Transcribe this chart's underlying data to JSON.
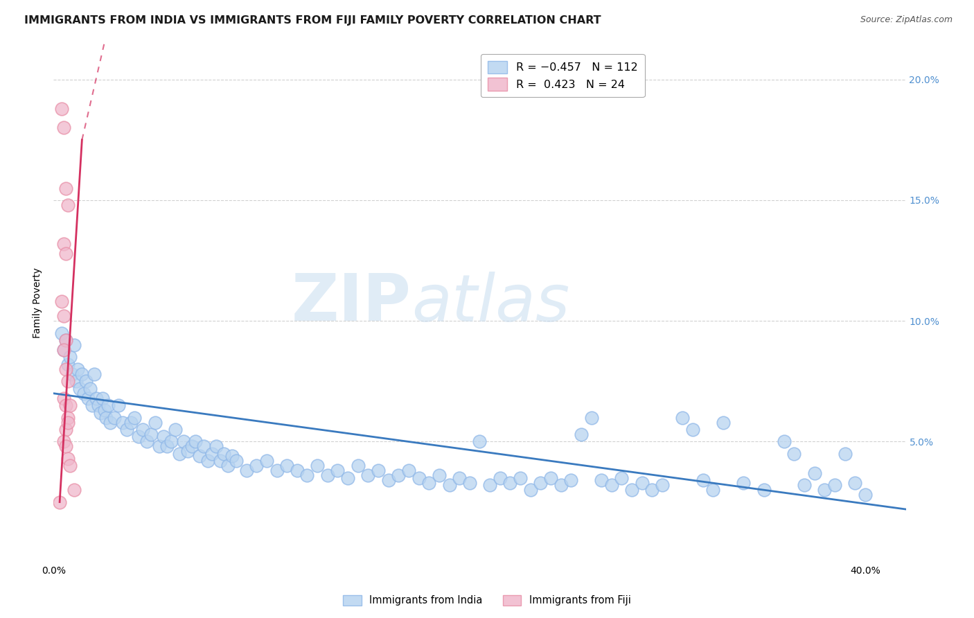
{
  "title": "IMMIGRANTS FROM INDIA VS IMMIGRANTS FROM FIJI FAMILY POVERTY CORRELATION CHART",
  "source": "Source: ZipAtlas.com",
  "ylabel": "Family Poverty",
  "right_yticks": [
    "20.0%",
    "15.0%",
    "10.0%",
    "5.0%"
  ],
  "right_ytick_vals": [
    0.2,
    0.15,
    0.1,
    0.05
  ],
  "xlim": [
    0.0,
    0.42
  ],
  "ylim": [
    0.0,
    0.215
  ],
  "india_color_face": "#b8d4f0",
  "india_color_edge": "#90b8e8",
  "fiji_color_face": "#f0b8cc",
  "fiji_color_edge": "#e890a8",
  "india_trend_color": "#3a7abf",
  "fiji_trend_color": "#d43060",
  "watermark_zip": "ZIP",
  "watermark_atlas": "atlas",
  "background_color": "#ffffff",
  "grid_color": "#cccccc",
  "title_fontsize": 11.5,
  "label_fontsize": 10,
  "tick_fontsize": 10,
  "right_axis_color": "#5090d0",
  "india_trend_x0": 0.0,
  "india_trend_y0": 0.07,
  "india_trend_x1": 0.42,
  "india_trend_y1": 0.022,
  "fiji_trend_solid_x0": 0.003,
  "fiji_trend_solid_y0": 0.025,
  "fiji_trend_solid_x1": 0.014,
  "fiji_trend_solid_y1": 0.175,
  "fiji_trend_dash_x0": 0.014,
  "fiji_trend_dash_y0": 0.175,
  "fiji_trend_dash_x1": 0.025,
  "fiji_trend_dash_y1": 0.215,
  "india_scatter": [
    [
      0.004,
      0.095
    ],
    [
      0.005,
      0.088
    ],
    [
      0.006,
      0.092
    ],
    [
      0.007,
      0.082
    ],
    [
      0.008,
      0.085
    ],
    [
      0.009,
      0.078
    ],
    [
      0.01,
      0.09
    ],
    [
      0.011,
      0.075
    ],
    [
      0.012,
      0.08
    ],
    [
      0.013,
      0.072
    ],
    [
      0.014,
      0.078
    ],
    [
      0.015,
      0.07
    ],
    [
      0.016,
      0.075
    ],
    [
      0.017,
      0.068
    ],
    [
      0.018,
      0.072
    ],
    [
      0.019,
      0.065
    ],
    [
      0.02,
      0.078
    ],
    [
      0.021,
      0.068
    ],
    [
      0.022,
      0.065
    ],
    [
      0.023,
      0.062
    ],
    [
      0.024,
      0.068
    ],
    [
      0.025,
      0.063
    ],
    [
      0.026,
      0.06
    ],
    [
      0.027,
      0.065
    ],
    [
      0.028,
      0.058
    ],
    [
      0.03,
      0.06
    ],
    [
      0.032,
      0.065
    ],
    [
      0.034,
      0.058
    ],
    [
      0.036,
      0.055
    ],
    [
      0.038,
      0.058
    ],
    [
      0.04,
      0.06
    ],
    [
      0.042,
      0.052
    ],
    [
      0.044,
      0.055
    ],
    [
      0.046,
      0.05
    ],
    [
      0.048,
      0.053
    ],
    [
      0.05,
      0.058
    ],
    [
      0.052,
      0.048
    ],
    [
      0.054,
      0.052
    ],
    [
      0.056,
      0.048
    ],
    [
      0.058,
      0.05
    ],
    [
      0.06,
      0.055
    ],
    [
      0.062,
      0.045
    ],
    [
      0.064,
      0.05
    ],
    [
      0.066,
      0.046
    ],
    [
      0.068,
      0.048
    ],
    [
      0.07,
      0.05
    ],
    [
      0.072,
      0.044
    ],
    [
      0.074,
      0.048
    ],
    [
      0.076,
      0.042
    ],
    [
      0.078,
      0.045
    ],
    [
      0.08,
      0.048
    ],
    [
      0.082,
      0.042
    ],
    [
      0.084,
      0.045
    ],
    [
      0.086,
      0.04
    ],
    [
      0.088,
      0.044
    ],
    [
      0.09,
      0.042
    ],
    [
      0.095,
      0.038
    ],
    [
      0.1,
      0.04
    ],
    [
      0.105,
      0.042
    ],
    [
      0.11,
      0.038
    ],
    [
      0.115,
      0.04
    ],
    [
      0.12,
      0.038
    ],
    [
      0.125,
      0.036
    ],
    [
      0.13,
      0.04
    ],
    [
      0.135,
      0.036
    ],
    [
      0.14,
      0.038
    ],
    [
      0.145,
      0.035
    ],
    [
      0.15,
      0.04
    ],
    [
      0.155,
      0.036
    ],
    [
      0.16,
      0.038
    ],
    [
      0.165,
      0.034
    ],
    [
      0.17,
      0.036
    ],
    [
      0.175,
      0.038
    ],
    [
      0.18,
      0.035
    ],
    [
      0.185,
      0.033
    ],
    [
      0.19,
      0.036
    ],
    [
      0.195,
      0.032
    ],
    [
      0.2,
      0.035
    ],
    [
      0.205,
      0.033
    ],
    [
      0.21,
      0.05
    ],
    [
      0.215,
      0.032
    ],
    [
      0.22,
      0.035
    ],
    [
      0.225,
      0.033
    ],
    [
      0.23,
      0.035
    ],
    [
      0.235,
      0.03
    ],
    [
      0.24,
      0.033
    ],
    [
      0.245,
      0.035
    ],
    [
      0.25,
      0.032
    ],
    [
      0.255,
      0.034
    ],
    [
      0.26,
      0.053
    ],
    [
      0.265,
      0.06
    ],
    [
      0.27,
      0.034
    ],
    [
      0.275,
      0.032
    ],
    [
      0.28,
      0.035
    ],
    [
      0.285,
      0.03
    ],
    [
      0.29,
      0.033
    ],
    [
      0.295,
      0.03
    ],
    [
      0.3,
      0.032
    ],
    [
      0.31,
      0.06
    ],
    [
      0.315,
      0.055
    ],
    [
      0.32,
      0.034
    ],
    [
      0.325,
      0.03
    ],
    [
      0.33,
      0.058
    ],
    [
      0.34,
      0.033
    ],
    [
      0.35,
      0.03
    ],
    [
      0.36,
      0.05
    ],
    [
      0.365,
      0.045
    ],
    [
      0.37,
      0.032
    ],
    [
      0.375,
      0.037
    ],
    [
      0.38,
      0.03
    ],
    [
      0.385,
      0.032
    ],
    [
      0.39,
      0.045
    ],
    [
      0.395,
      0.033
    ],
    [
      0.4,
      0.028
    ]
  ],
  "fiji_scatter": [
    [
      0.003,
      0.025
    ],
    [
      0.004,
      0.188
    ],
    [
      0.005,
      0.18
    ],
    [
      0.006,
      0.155
    ],
    [
      0.007,
      0.148
    ],
    [
      0.005,
      0.132
    ],
    [
      0.006,
      0.128
    ],
    [
      0.004,
      0.108
    ],
    [
      0.005,
      0.102
    ],
    [
      0.006,
      0.092
    ],
    [
      0.005,
      0.088
    ],
    [
      0.006,
      0.08
    ],
    [
      0.007,
      0.075
    ],
    [
      0.005,
      0.068
    ],
    [
      0.006,
      0.065
    ],
    [
      0.007,
      0.06
    ],
    [
      0.008,
      0.065
    ],
    [
      0.006,
      0.055
    ],
    [
      0.007,
      0.058
    ],
    [
      0.005,
      0.05
    ],
    [
      0.006,
      0.048
    ],
    [
      0.007,
      0.043
    ],
    [
      0.008,
      0.04
    ],
    [
      0.01,
      0.03
    ]
  ]
}
